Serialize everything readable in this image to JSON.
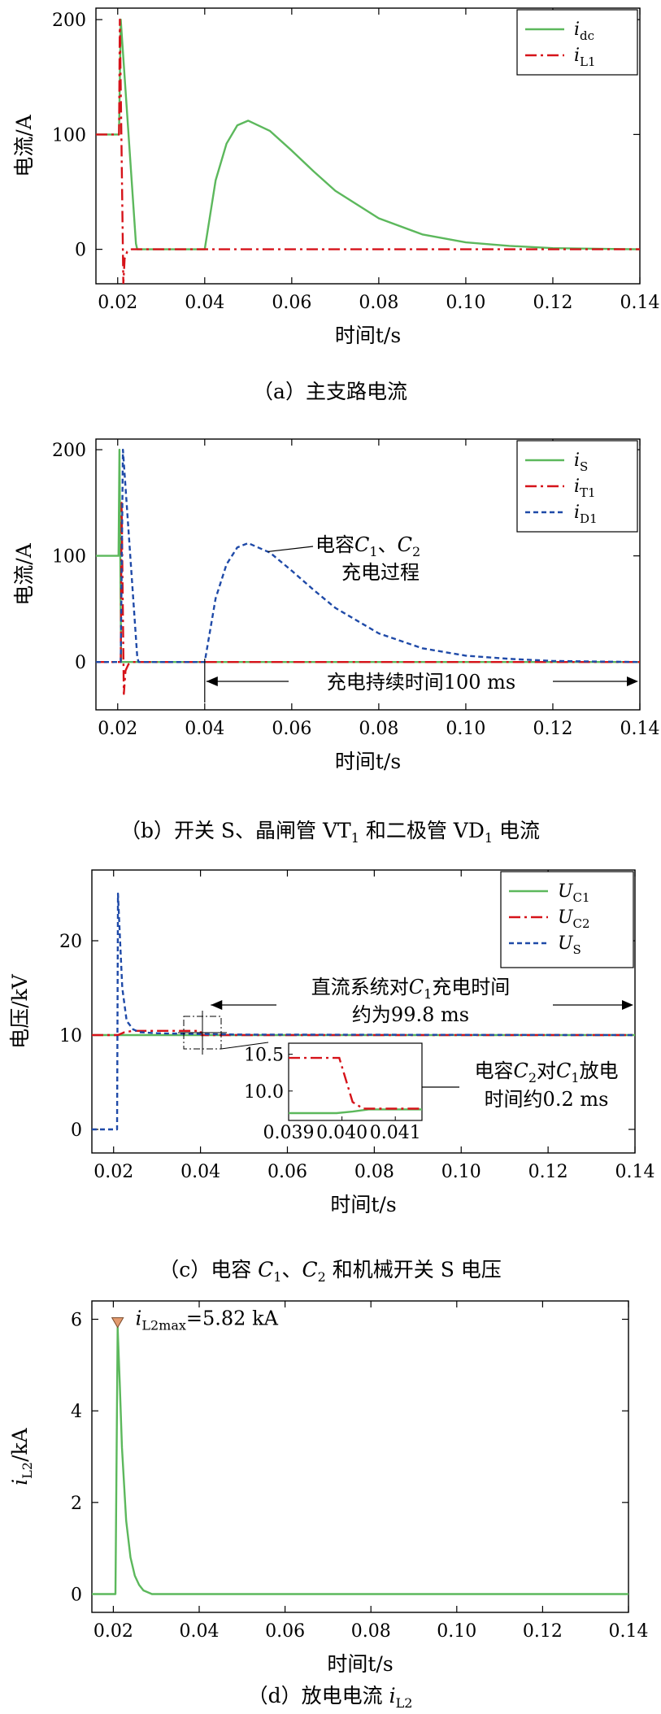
{
  "colors": {
    "green": "#5cb85c",
    "red": "#d6131a",
    "blue": "#1f4aa8",
    "marker": "#e39a6e",
    "axis": "#000000"
  },
  "chart_data": [
    {
      "type": "line",
      "caption": "（a）主支路电流",
      "xlabel": "时间t/s",
      "ylabel": "电流/A",
      "xlim": [
        0.015,
        0.14
      ],
      "ylim": [
        -30,
        210
      ],
      "xticks": [
        "0.02",
        "0.04",
        "0.06",
        "0.08",
        "0.10",
        "0.12",
        "0.14"
      ],
      "xtick_values": [
        0.02,
        0.04,
        0.06,
        0.08,
        0.1,
        0.12,
        0.14
      ],
      "yticks": [
        "0",
        "100",
        "200"
      ],
      "ytick_values": [
        0,
        100,
        200
      ],
      "legend": [
        {
          "main": "i",
          "sub": "dc",
          "style": "solid",
          "color": "green"
        },
        {
          "main": "i",
          "sub": "L1",
          "style": "dashdot",
          "color": "red"
        }
      ],
      "series": [
        {
          "name": "i_dc",
          "style": "solid",
          "color": "green",
          "x": [
            0.015,
            0.0203,
            0.0207,
            0.0242,
            0.0245,
            0.04,
            0.0425,
            0.045,
            0.0475,
            0.05,
            0.055,
            0.06,
            0.065,
            0.07,
            0.08,
            0.09,
            0.1,
            0.11,
            0.12,
            0.13,
            0.14
          ],
          "y": [
            100,
            100,
            200,
            5,
            0,
            0,
            60,
            92,
            108,
            112,
            103,
            86,
            68,
            51,
            27,
            13,
            6,
            3,
            1,
            0.5,
            0
          ]
        },
        {
          "name": "i_L1",
          "style": "dashdot",
          "color": "red",
          "x": [
            0.015,
            0.0203,
            0.0205,
            0.0213,
            0.0216,
            0.0222,
            0.0232,
            0.14
          ],
          "y": [
            100,
            100,
            200,
            -30,
            -8,
            -2,
            0,
            0
          ]
        }
      ]
    },
    {
      "type": "line",
      "caption": "（b）开关 S、晶闸管 VT₁ 和二极管 VD₁ 电流",
      "xlabel": "时间t/s",
      "ylabel": "电流/A",
      "xlim": [
        0.015,
        0.14
      ],
      "ylim": [
        -45,
        210
      ],
      "xticks": [
        "0.02",
        "0.04",
        "0.06",
        "0.08",
        "0.10",
        "0.12",
        "0.14"
      ],
      "xtick_values": [
        0.02,
        0.04,
        0.06,
        0.08,
        0.1,
        0.12,
        0.14
      ],
      "yticks": [
        "0",
        "100",
        "200"
      ],
      "ytick_values": [
        0,
        100,
        200
      ],
      "legend": [
        {
          "main": "i",
          "sub": "S",
          "style": "solid",
          "color": "green"
        },
        {
          "main": "i",
          "sub": "T1",
          "style": "dashdot",
          "color": "red"
        },
        {
          "main": "i",
          "sub": "D1",
          "style": "dashed",
          "color": "blue"
        }
      ],
      "annotations": [
        {
          "lines": [
            "电容C₁、C₂",
            "充电过程"
          ]
        },
        {
          "lines": [
            "充电持续时间100 ms"
          ],
          "arrow_from": 0.04,
          "arrow_to": 0.14
        }
      ],
      "series": [
        {
          "name": "i_S",
          "style": "solid",
          "color": "green",
          "x": [
            0.015,
            0.0202,
            0.0204,
            0.0208,
            0.021,
            0.14
          ],
          "y": [
            100,
            100,
            200,
            0,
            0,
            0
          ]
        },
        {
          "name": "i_T1",
          "style": "dashdot",
          "color": "red",
          "x": [
            0.015,
            0.0207,
            0.0209,
            0.0214,
            0.0218,
            0.0225,
            0.0235,
            0.14
          ],
          "y": [
            0,
            0,
            150,
            -30,
            -8,
            -2,
            0,
            0
          ]
        },
        {
          "name": "i_D1",
          "style": "dashed",
          "color": "blue",
          "x": [
            0.015,
            0.0207,
            0.0212,
            0.0245,
            0.0248,
            0.04,
            0.0425,
            0.045,
            0.0475,
            0.05,
            0.055,
            0.06,
            0.065,
            0.07,
            0.08,
            0.09,
            0.1,
            0.11,
            0.12,
            0.13,
            0.14
          ],
          "y": [
            0,
            0,
            200,
            5,
            0,
            0,
            60,
            92,
            108,
            112,
            103,
            86,
            68,
            51,
            27,
            13,
            6,
            3,
            1,
            0.5,
            0
          ]
        }
      ]
    },
    {
      "type": "line",
      "caption": "（c）电容 C₁、C₂ 和机械开关 S 电压",
      "xlabel": "时间t/s",
      "ylabel": "电压/kV",
      "xlim": [
        0.015,
        0.14
      ],
      "ylim": [
        -2.5,
        27.5
      ],
      "xticks": [
        "0.02",
        "0.04",
        "0.06",
        "0.08",
        "0.10",
        "0.12",
        "0.14"
      ],
      "xtick_values": [
        0.02,
        0.04,
        0.06,
        0.08,
        0.1,
        0.12,
        0.14
      ],
      "yticks": [
        "0",
        "10",
        "20"
      ],
      "ytick_values": [
        0,
        10,
        20
      ],
      "legend": [
        {
          "main": "U",
          "sub": "C1",
          "style": "solid",
          "color": "green"
        },
        {
          "main": "U",
          "sub": "C2",
          "style": "dashdot",
          "color": "red"
        },
        {
          "main": "U",
          "sub": "S",
          "style": "dashed",
          "color": "blue"
        }
      ],
      "annotations": [
        {
          "lines": [
            "直流系统对C₁充电时间",
            "约为99.8 ms"
          ],
          "arrow_from": 0.042,
          "arrow_to": 0.14
        },
        {
          "lines": [
            "电容C₂对C₁放电",
            "时间约0.2 ms"
          ]
        }
      ],
      "series": [
        {
          "name": "U_C1",
          "style": "solid",
          "color": "green",
          "x": [
            0.015,
            0.14
          ],
          "y": [
            10,
            10
          ]
        },
        {
          "name": "U_C2",
          "style": "dashdot",
          "color": "red",
          "x": [
            0.015,
            0.021,
            0.0225,
            0.0245,
            0.0255,
            0.04,
            0.0402,
            0.14
          ],
          "y": [
            10,
            10,
            10.3,
            10.45,
            10.45,
            10.45,
            10,
            10
          ]
        },
        {
          "name": "U_S",
          "style": "dashed",
          "color": "blue",
          "x": [
            0.015,
            0.0208,
            0.021,
            0.0215,
            0.022,
            0.023,
            0.0245,
            0.026,
            0.03,
            0.035,
            0.04,
            0.05,
            0.14
          ],
          "y": [
            0,
            0,
            25,
            20,
            15,
            11.5,
            10.6,
            10.3,
            10.2,
            10.15,
            10.1,
            10.05,
            10
          ]
        }
      ],
      "inset": {
        "xlim": [
          0.039,
          0.0415
        ],
        "ylim": [
          9.6,
          10.65
        ],
        "xticks": [
          "0.039",
          "0.040",
          "0.041"
        ],
        "xtick_values": [
          0.039,
          0.04,
          0.041
        ],
        "yticks": [
          "10.0",
          "10.5"
        ],
        "ytick_values": [
          10.0,
          10.5
        ],
        "series": [
          {
            "name": "U_C1",
            "style": "solid",
            "color": "green",
            "x": [
              0.039,
              0.0399,
              0.0402,
              0.0405,
              0.0415
            ],
            "y": [
              9.7,
              9.7,
              9.72,
              9.75,
              9.75
            ]
          },
          {
            "name": "U_C2",
            "style": "dashdot",
            "color": "red",
            "x": [
              0.039,
              0.03995,
              0.0402,
              0.0404,
              0.0415
            ],
            "y": [
              10.45,
              10.45,
              9.85,
              9.76,
              9.76
            ]
          }
        ]
      }
    },
    {
      "type": "line",
      "caption": "（d）放电电流 i_L2",
      "xlabel": "时间t/s",
      "ylabel": "i_L2/kA",
      "xlim": [
        0.015,
        0.14
      ],
      "ylim": [
        -0.4,
        6.4
      ],
      "xticks": [
        "0.02",
        "0.04",
        "0.06",
        "0.08",
        "0.10",
        "0.12",
        "0.14"
      ],
      "xtick_values": [
        0.02,
        0.04,
        0.06,
        0.08,
        0.1,
        0.12,
        0.14
      ],
      "yticks": [
        "0",
        "2",
        "4",
        "6"
      ],
      "ytick_values": [
        0,
        2,
        4,
        6
      ],
      "annotations": [
        {
          "lines": [
            "i_L2max=5.82 kA"
          ],
          "marker_x": 0.021,
          "marker_y": 5.82
        }
      ],
      "series": [
        {
          "name": "i_L2",
          "style": "solid",
          "color": "green",
          "x": [
            0.015,
            0.0205,
            0.021,
            0.0215,
            0.022,
            0.023,
            0.024,
            0.025,
            0.026,
            0.027,
            0.029,
            0.14
          ],
          "y": [
            0,
            0,
            5.82,
            4.6,
            3.2,
            1.6,
            0.8,
            0.4,
            0.2,
            0.08,
            0,
            0
          ]
        }
      ]
    }
  ]
}
